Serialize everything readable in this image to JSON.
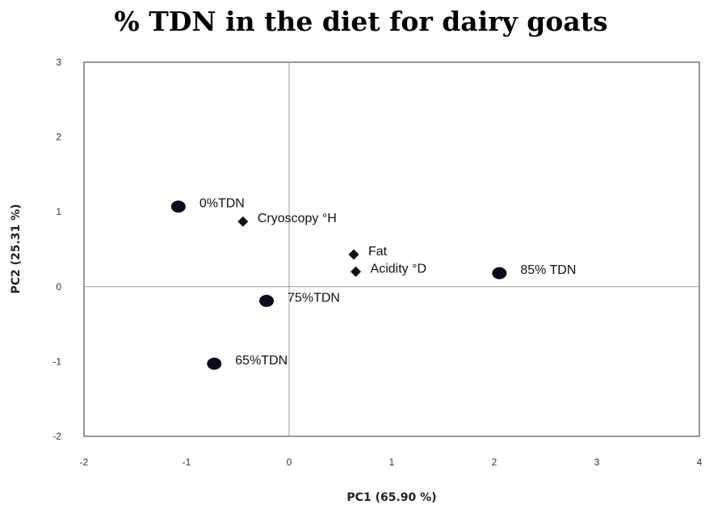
{
  "chart_data": {
    "type": "scatter",
    "title": "% TDN in the diet for dairy goats",
    "xlabel": "PC1 (65.90 %)",
    "ylabel": "PC2 (25.31 %)",
    "xlim": [
      -2,
      4
    ],
    "ylim": [
      -2,
      3
    ],
    "xticks": [
      "-2",
      "-1",
      "0",
      "1",
      "2",
      "3",
      "4"
    ],
    "yticks": [
      "3",
      "2",
      "1",
      "0",
      "-1",
      "-2"
    ],
    "grid": false,
    "reference_lines": {
      "x": 0,
      "y": 0
    },
    "points": [
      {
        "label": "0%TDN",
        "x": -1.08,
        "y": 1.07,
        "marker": "circle"
      },
      {
        "label": "Cryoscopy °H",
        "x": -0.45,
        "y": 0.87,
        "marker": "diamond"
      },
      {
        "label": "Fat",
        "x": 0.63,
        "y": 0.43,
        "marker": "diamond"
      },
      {
        "label": "Acidity °D",
        "x": 0.65,
        "y": 0.2,
        "marker": "diamond"
      },
      {
        "label": "85% TDN",
        "x": 2.05,
        "y": 0.18,
        "marker": "circle"
      },
      {
        "label": "75%TDN",
        "x": -0.22,
        "y": -0.19,
        "marker": "circle"
      },
      {
        "label": "65%TDN",
        "x": -0.73,
        "y": -1.03,
        "marker": "circle"
      }
    ]
  }
}
